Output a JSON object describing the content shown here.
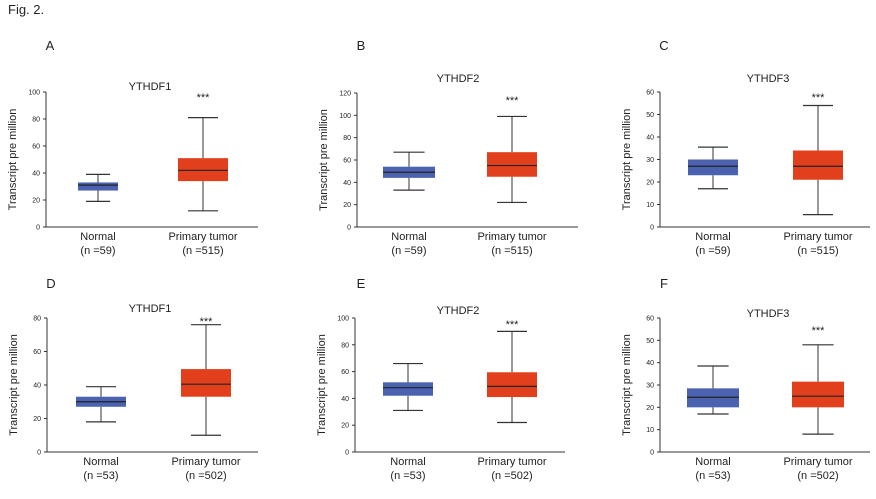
{
  "figure_label": "Fig. 2.",
  "colors": {
    "normal": "#4a62b0",
    "tumor": "#e2401c",
    "axis": "#333333"
  },
  "chart_data": [
    {
      "panel": "A",
      "type": "box",
      "title": "YTHDF1",
      "ylabel": "Transcript pre million",
      "ylim": [
        0,
        100
      ],
      "yticks": [
        0,
        20,
        40,
        60,
        80,
        100
      ],
      "significance": "***",
      "categories": [
        {
          "name": "Normal",
          "n": "(n =59)",
          "min": 19,
          "q1": 27,
          "median": 31,
          "q3": 33,
          "max": 39
        },
        {
          "name": "Primary tumor",
          "n": "(n =515)",
          "min": 12,
          "q1": 34,
          "median": 42,
          "q3": 51,
          "max": 81
        }
      ]
    },
    {
      "panel": "B",
      "type": "box",
      "title": "YTHDF2",
      "ylabel": "Transcript pre million",
      "ylim": [
        0,
        120
      ],
      "yticks": [
        0,
        20,
        40,
        60,
        80,
        100,
        120
      ],
      "significance": "***",
      "categories": [
        {
          "name": "Normal",
          "n": "(n =59)",
          "min": 33,
          "q1": 44,
          "median": 49,
          "q3": 54,
          "max": 67
        },
        {
          "name": "Primary tumor",
          "n": "(n =515)",
          "min": 22,
          "q1": 45,
          "median": 55,
          "q3": 67,
          "max": 99
        }
      ]
    },
    {
      "panel": "C",
      "type": "box",
      "title": "YTHDF3",
      "ylabel": "Transcript pre million",
      "ylim": [
        0,
        60
      ],
      "yticks": [
        0,
        10,
        20,
        30,
        40,
        50,
        60
      ],
      "significance": "***",
      "categories": [
        {
          "name": "Normal",
          "n": "(n =59)",
          "min": 17,
          "q1": 23,
          "median": 27,
          "q3": 30,
          "max": 35.5
        },
        {
          "name": "Primary tumor",
          "n": "(n =515)",
          "min": 5.5,
          "q1": 21,
          "median": 27,
          "q3": 34,
          "max": 54
        }
      ]
    },
    {
      "panel": "D",
      "type": "box",
      "title": "YTHDF1",
      "ylabel": "Transcript pre million",
      "ylim": [
        0,
        80
      ],
      "yticks": [
        0,
        20,
        40,
        60,
        80
      ],
      "significance": "***",
      "categories": [
        {
          "name": "Normal",
          "n": "(n =53)",
          "min": 18,
          "q1": 27,
          "median": 30,
          "q3": 33,
          "max": 39
        },
        {
          "name": "Primary tumor",
          "n": "(n =502)",
          "min": 10,
          "q1": 33,
          "median": 40.5,
          "q3": 49.5,
          "max": 76
        }
      ]
    },
    {
      "panel": "E",
      "type": "box",
      "title": "YTHDF2",
      "ylabel": "Transcript pre million",
      "ylim": [
        0,
        100
      ],
      "yticks": [
        0,
        20,
        40,
        60,
        80,
        100
      ],
      "significance": "***",
      "categories": [
        {
          "name": "Normal",
          "n": "(n =53)",
          "min": 31,
          "q1": 42,
          "median": 48,
          "q3": 52,
          "max": 66
        },
        {
          "name": "Primary tumor",
          "n": "(n =502)",
          "min": 22,
          "q1": 41,
          "median": 49,
          "q3": 59.5,
          "max": 90
        }
      ]
    },
    {
      "panel": "F",
      "type": "box",
      "title": "YTHDF3",
      "ylabel": "Transcript pre million",
      "ylim": [
        0,
        60
      ],
      "yticks": [
        0,
        10,
        20,
        30,
        40,
        50,
        60
      ],
      "significance": "***",
      "categories": [
        {
          "name": "Normal",
          "n": "(n =53)",
          "min": 17,
          "q1": 20,
          "median": 24.5,
          "q3": 28.5,
          "max": 38.5
        },
        {
          "name": "Primary tumor",
          "n": "(n =502)",
          "min": 8,
          "q1": 20,
          "median": 25,
          "q3": 31.5,
          "max": 48
        }
      ]
    }
  ]
}
